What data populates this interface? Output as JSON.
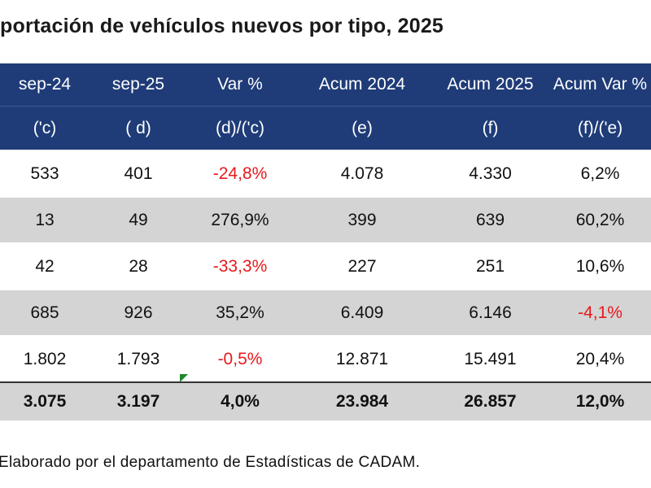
{
  "header": {
    "title": "portación de vehículos nuevos por tipo, 2025"
  },
  "table": {
    "columns": [
      {
        "name": "sep-24",
        "sub": "('c)"
      },
      {
        "name": "sep-25",
        "sub": "( d)"
      },
      {
        "name": "Var %",
        "sub": "(d)/('c)"
      },
      {
        "name": "Acum 2024",
        "sub": "(e)"
      },
      {
        "name": "Acum 2025",
        "sub": "(f)"
      },
      {
        "name": "Acum Var %",
        "sub": "(f)/('e)"
      }
    ],
    "rows": [
      [
        "533",
        "401",
        "-24,8%",
        "4.078",
        "4.330",
        "6,2%"
      ],
      [
        "13",
        "49",
        "276,9%",
        "399",
        "639",
        "60,2%"
      ],
      [
        "42",
        "28",
        "-33,3%",
        "227",
        "251",
        "10,6%"
      ],
      [
        "685",
        "926",
        "35,2%",
        "6.409",
        "6.146",
        "-4,1%"
      ],
      [
        "1.802",
        "1.793",
        "-0,5%",
        "12.871",
        "15.491",
        "20,4%"
      ],
      [
        "3.075",
        "3.197",
        "4,0%",
        "23.984",
        "26.857",
        "12,0%"
      ]
    ]
  },
  "footer": {
    "note": "Elaborado por el departamento de Estadísticas de CADAM."
  }
}
